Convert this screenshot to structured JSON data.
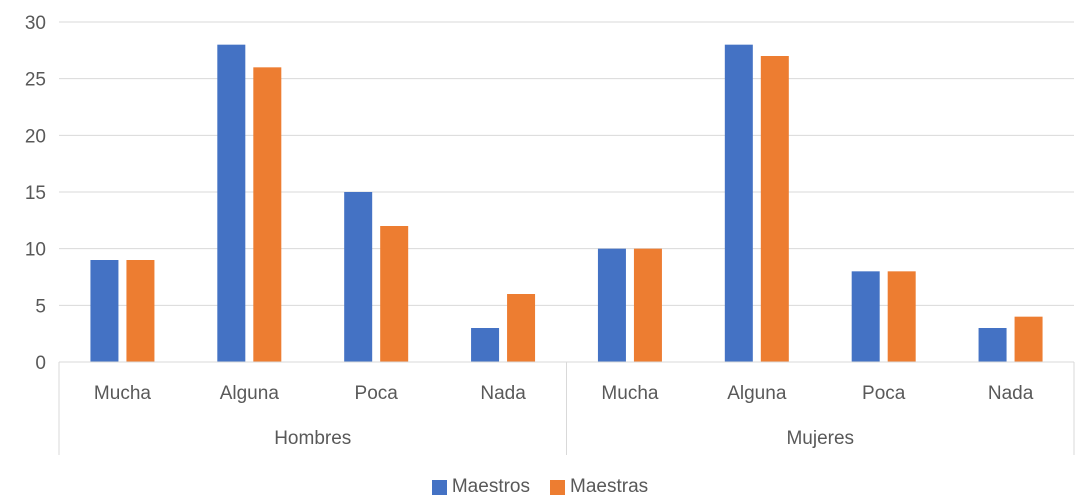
{
  "chart_data": {
    "type": "bar",
    "title": "",
    "xlabel": "",
    "ylabel": "",
    "ylim": [
      0,
      30
    ],
    "yticks": [
      0,
      5,
      10,
      15,
      20,
      25,
      30
    ],
    "grid": true,
    "legend_position": "bottom",
    "groups": [
      {
        "label": "Hombres",
        "categories": [
          "Mucha",
          "Alguna",
          "Poca",
          "Nada"
        ]
      },
      {
        "label": "Mujeres",
        "categories": [
          "Mucha",
          "Alguna",
          "Poca",
          "Nada"
        ]
      }
    ],
    "series": [
      {
        "name": "Maestros",
        "color": "#4472C4",
        "values": [
          9,
          28,
          15,
          3,
          10,
          28,
          8,
          3
        ]
      },
      {
        "name": "Maestras",
        "color": "#ED7D31",
        "values": [
          9,
          26,
          12,
          6,
          10,
          27,
          8,
          4
        ]
      }
    ]
  }
}
